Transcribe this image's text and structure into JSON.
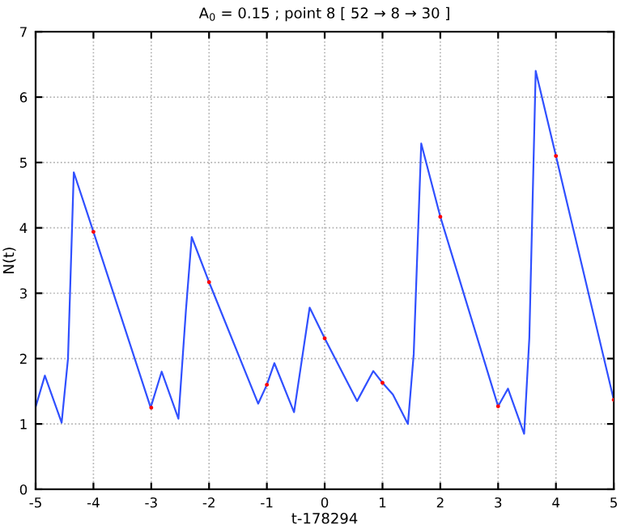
{
  "chart_data": {
    "type": "line",
    "title": "A$_{0}$ = 0.15 ; point 8 [ 52 → 8 → 30 ]",
    "xlabel": "t-178294",
    "ylabel": "N(t)",
    "xlim": [
      -5,
      5
    ],
    "ylim": [
      0,
      7
    ],
    "xticks": [
      -5,
      -4,
      -3,
      -2,
      -1,
      0,
      1,
      2,
      3,
      4,
      5
    ],
    "yticks": [
      0,
      1,
      2,
      3,
      4,
      5,
      6,
      7
    ],
    "grid": true,
    "series": [
      {
        "color": "#3050ff",
        "x": [
          -5,
          -4.84,
          -4.55,
          -4.44,
          -4.34,
          -4.0,
          -3.01,
          -2.82,
          -2.53,
          -2.4,
          -2.3,
          -2.0,
          -1.15,
          -1.0,
          -0.87,
          -0.53,
          -0.38,
          -0.26,
          0,
          0.56,
          0.84,
          1.0,
          1.18,
          1.44,
          1.54,
          1.67,
          2.0,
          3.0,
          3.17,
          3.45,
          3.54,
          3.65,
          4.0,
          5.0
        ],
        "values": [
          1.26,
          1.74,
          1.02,
          2.0,
          4.85,
          3.94,
          1.25,
          1.8,
          1.08,
          2.74,
          3.86,
          3.17,
          1.31,
          1.6,
          1.93,
          1.18,
          2.07,
          2.78,
          2.31,
          1.35,
          1.81,
          1.63,
          1.45,
          1.0,
          2.07,
          5.29,
          4.17,
          1.27,
          1.54,
          0.85,
          2.32,
          6.4,
          5.1,
          1.37
        ]
      },
      {
        "type": "scatter",
        "color": "#ff0000",
        "marker": "circle",
        "x": [
          -4,
          -3,
          -2,
          -1,
          0,
          1,
          2,
          3,
          4,
          5
        ],
        "values": [
          3.94,
          1.25,
          3.17,
          1.6,
          2.31,
          1.63,
          4.17,
          1.27,
          5.1,
          1.37
        ]
      }
    ]
  }
}
